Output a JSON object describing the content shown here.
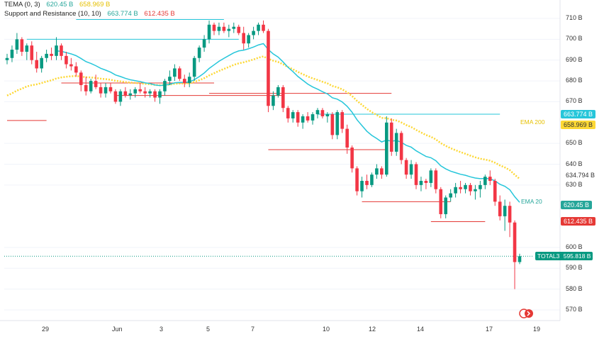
{
  "legend": {
    "tema_label": "TEMA (0, 3)",
    "tema_value": "620.45 B",
    "tema_value2": "658.969 B",
    "sr_label": "Support and Resistance (10, 10)",
    "sr_value1": "663.774 B",
    "sr_value2": "612.435 B"
  },
  "colors": {
    "up": "#089981",
    "down": "#f23645",
    "ema20": "#26c6da",
    "ema200": "#ffeb3b",
    "support": "#e53935",
    "resistance": "#26c6da"
  },
  "badges": {
    "resistance": "663.774 B",
    "ema200": "658.969 B",
    "level": "634.794 B",
    "ema20": "620.45 B",
    "support": "612.435 B",
    "total_name": "TOTAL3",
    "total_value": "595.818 B"
  },
  "annotations": {
    "ema200": "EMA 200",
    "ema20": "EMA 20"
  },
  "chart_data": {
    "type": "candlestick",
    "title": "TOTAL3",
    "ylim": [
      565,
      715
    ],
    "y_ticks": [
      "710 B",
      "700 B",
      "690 B",
      "680 B",
      "670 B",
      "650 B",
      "640 B",
      "630 B",
      "600 B",
      "590 B",
      "580 B",
      "570 B"
    ],
    "y_tick_values": [
      710,
      700,
      690,
      680,
      670,
      650,
      640,
      630,
      600,
      590,
      580,
      570
    ],
    "x_labels": [
      "29",
      "Jun",
      "3",
      "5",
      "7",
      "10",
      "12",
      "14",
      "17",
      "19"
    ],
    "last_price": 595.818,
    "candles": [
      [
        690,
        693,
        688,
        691
      ],
      [
        691,
        697,
        689,
        695
      ],
      [
        695,
        703,
        693,
        700
      ],
      [
        700,
        701,
        692,
        694
      ],
      [
        694,
        698,
        690,
        697
      ],
      [
        697,
        699,
        688,
        690
      ],
      [
        690,
        694,
        684,
        686
      ],
      [
        686,
        692,
        684,
        691
      ],
      [
        691,
        695,
        689,
        693
      ],
      [
        693,
        696,
        690,
        692
      ],
      [
        692,
        701,
        690,
        697
      ],
      [
        697,
        698,
        690,
        692
      ],
      [
        692,
        694,
        686,
        688
      ],
      [
        688,
        691,
        685,
        687
      ],
      [
        687,
        689,
        682,
        684
      ],
      [
        684,
        685,
        675,
        678
      ],
      [
        678,
        682,
        673,
        675
      ],
      [
        675,
        681,
        674,
        680
      ],
      [
        680,
        683,
        676,
        677
      ],
      [
        677,
        679,
        672,
        674
      ],
      [
        674,
        679,
        672,
        677
      ],
      [
        677,
        679,
        674,
        675
      ],
      [
        675,
        676,
        669,
        670
      ],
      [
        670,
        676,
        668,
        675
      ],
      [
        675,
        677,
        672,
        673
      ],
      [
        673,
        676,
        671,
        674
      ],
      [
        674,
        677,
        672,
        676
      ],
      [
        676,
        679,
        674,
        675
      ],
      [
        675,
        677,
        672,
        674
      ],
      [
        674,
        676,
        672,
        675
      ],
      [
        675,
        676,
        670,
        672
      ],
      [
        672,
        676,
        669,
        675
      ],
      [
        675,
        681,
        673,
        680
      ],
      [
        680,
        685,
        678,
        682
      ],
      [
        682,
        688,
        680,
        686
      ],
      [
        686,
        687,
        680,
        681
      ],
      [
        681,
        683,
        677,
        679
      ],
      [
        679,
        684,
        677,
        682
      ],
      [
        682,
        692,
        680,
        691
      ],
      [
        691,
        697,
        689,
        696
      ],
      [
        696,
        702,
        694,
        700
      ],
      [
        700,
        709,
        698,
        707
      ],
      [
        707,
        708,
        702,
        704
      ],
      [
        704,
        708,
        702,
        706
      ],
      [
        706,
        708,
        703,
        704
      ],
      [
        704,
        707,
        701,
        705
      ],
      [
        705,
        708,
        703,
        706
      ],
      [
        706,
        707,
        702,
        703
      ],
      [
        703,
        706,
        695,
        698
      ],
      [
        698,
        703,
        696,
        702
      ],
      [
        702,
        706,
        700,
        704
      ],
      [
        704,
        708,
        702,
        707
      ],
      [
        707,
        709,
        703,
        704
      ],
      [
        704,
        705,
        665,
        668
      ],
      [
        668,
        675,
        666,
        673
      ],
      [
        673,
        678,
        672,
        677
      ],
      [
        677,
        678,
        665,
        667
      ],
      [
        667,
        668,
        660,
        662
      ],
      [
        662,
        666,
        660,
        665
      ],
      [
        665,
        666,
        658,
        660
      ],
      [
        660,
        664,
        657,
        663
      ],
      [
        663,
        665,
        660,
        661
      ],
      [
        661,
        665,
        659,
        664
      ],
      [
        664,
        667,
        662,
        666
      ],
      [
        666,
        667,
        662,
        663
      ],
      [
        663,
        665,
        660,
        664
      ],
      [
        664,
        665,
        652,
        654
      ],
      [
        654,
        666,
        652,
        665
      ],
      [
        665,
        666,
        655,
        657
      ],
      [
        657,
        659,
        645,
        648
      ],
      [
        648,
        649,
        636,
        638
      ],
      [
        638,
        639,
        625,
        627
      ],
      [
        627,
        634,
        624,
        632
      ],
      [
        632,
        635,
        628,
        630
      ],
      [
        630,
        636,
        629,
        635
      ],
      [
        635,
        640,
        633,
        638
      ],
      [
        638,
        639,
        633,
        635
      ],
      [
        635,
        663,
        634,
        660
      ],
      [
        660,
        662,
        644,
        646
      ],
      [
        646,
        657,
        644,
        655
      ],
      [
        655,
        656,
        640,
        642
      ],
      [
        642,
        643,
        633,
        635
      ],
      [
        635,
        642,
        633,
        640
      ],
      [
        640,
        641,
        628,
        630
      ],
      [
        630,
        634,
        627,
        632
      ],
      [
        632,
        633,
        628,
        631
      ],
      [
        631,
        638,
        629,
        637
      ],
      [
        637,
        638,
        626,
        628
      ],
      [
        628,
        629,
        614,
        616
      ],
      [
        616,
        625,
        614,
        624
      ],
      [
        624,
        628,
        622,
        626
      ],
      [
        626,
        631,
        624,
        629
      ],
      [
        629,
        632,
        626,
        628
      ],
      [
        628,
        631,
        626,
        630
      ],
      [
        630,
        631,
        625,
        627
      ],
      [
        627,
        630,
        623,
        628
      ],
      [
        628,
        632,
        624,
        630
      ],
      [
        630,
        635,
        628,
        634
      ],
      [
        634,
        637,
        630,
        632
      ],
      [
        632,
        633,
        620,
        622
      ],
      [
        622,
        625,
        613,
        615
      ],
      [
        615,
        623,
        608,
        620
      ],
      [
        620,
        622,
        605,
        612
      ],
      [
        612,
        613,
        580,
        593
      ],
      [
        593,
        597,
        592,
        595.8
      ]
    ]
  }
}
